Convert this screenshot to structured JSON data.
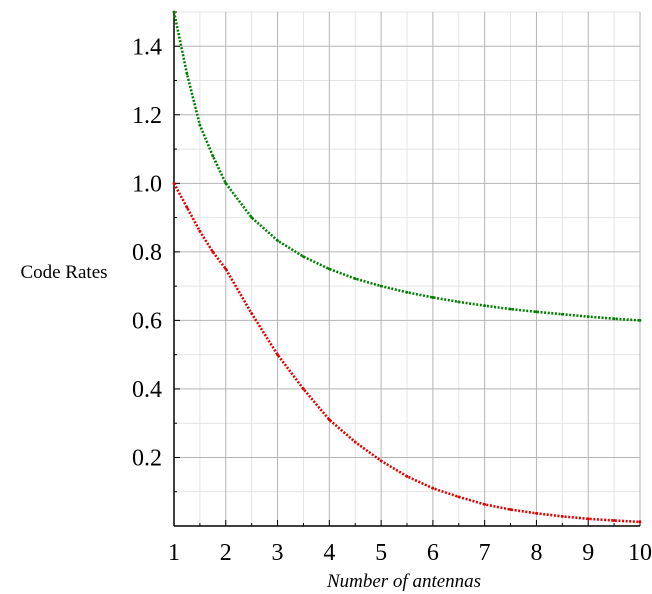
{
  "chart_data": {
    "type": "line",
    "title": "",
    "xlabel": "Number of antennas",
    "ylabel": "Code Rates",
    "xlim": [
      1,
      10
    ],
    "ylim": [
      0,
      1.5
    ],
    "xticks": [
      1,
      2,
      3,
      4,
      5,
      6,
      7,
      8,
      9,
      10
    ],
    "xtick_labels": [
      "1",
      "2",
      "3",
      "4",
      "5",
      "6",
      "7",
      "8",
      "9",
      "10"
    ],
    "yticks": [
      0.2,
      0.4,
      0.6,
      0.8,
      1.0,
      1.2,
      1.4
    ],
    "ytick_labels": [
      "0.2",
      "0.4",
      "0.6",
      "0.8",
      "1.0",
      "1.2",
      "1.4"
    ],
    "grid": true,
    "colors": {
      "grid_major": "#b4b4b4",
      "grid_minor": "#e4e4e4",
      "axis": "#000000"
    },
    "series": [
      {
        "color": "#008000",
        "style": "dotted",
        "x": [
          1,
          1.25,
          1.5,
          1.75,
          2,
          2.5,
          3,
          3.5,
          4,
          4.5,
          5,
          5.5,
          6,
          6.5,
          7,
          7.5,
          8,
          8.5,
          9,
          9.5,
          10
        ],
        "y": [
          1.5,
          1.32,
          1.17,
          1.08,
          1.0,
          0.9,
          0.833,
          0.786,
          0.75,
          0.722,
          0.7,
          0.682,
          0.667,
          0.654,
          0.643,
          0.633,
          0.625,
          0.618,
          0.611,
          0.605,
          0.6
        ]
      },
      {
        "color": "#e00000",
        "style": "dotted",
        "x": [
          1,
          1.25,
          1.5,
          1.75,
          2,
          2.5,
          3,
          3.5,
          4,
          4.5,
          5,
          5.5,
          6,
          6.5,
          7,
          7.5,
          8,
          8.5,
          9,
          9.5,
          10
        ],
        "y": [
          1.0,
          0.93,
          0.86,
          0.8,
          0.75,
          0.62,
          0.5,
          0.4,
          0.31,
          0.245,
          0.19,
          0.145,
          0.11,
          0.085,
          0.063,
          0.048,
          0.037,
          0.028,
          0.021,
          0.016,
          0.012
        ]
      }
    ]
  }
}
